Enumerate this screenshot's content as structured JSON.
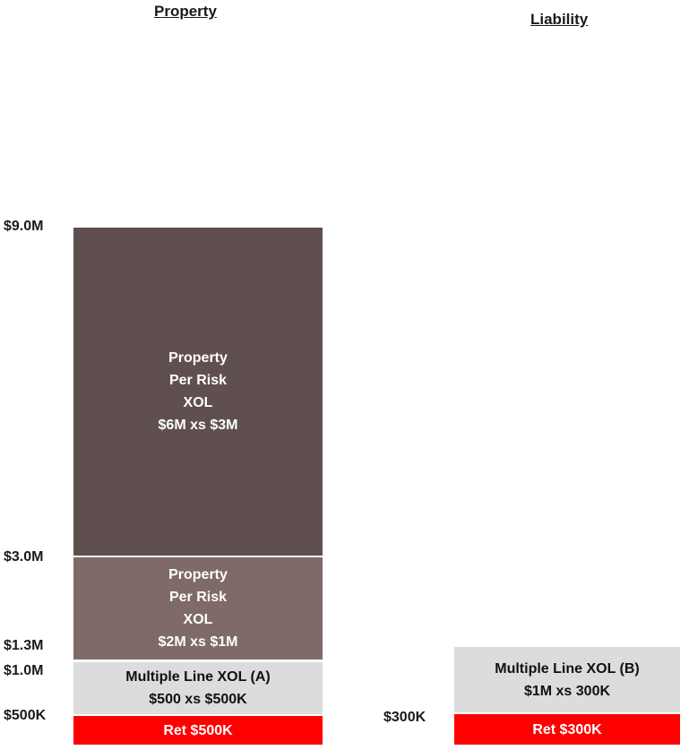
{
  "columns": {
    "property": {
      "heading": "Property",
      "y_labels": [
        "$9.0M",
        "$3.0M",
        "$1.3M",
        "$1.0M",
        "$500K"
      ],
      "layers": [
        {
          "label": "Property\nPer Risk\nXOL\n$6M xs $3M",
          "color": "#5f504f"
        },
        {
          "label": "Property\nPer Risk\nXOL\n$2M xs $1M",
          "color": "#7f6a68"
        },
        {
          "label": "Multiple Line XOL (A)\n$500 xs $500K",
          "color": "#dcdcdc"
        },
        {
          "label": "Ret $500K",
          "color": "#ff0000"
        }
      ]
    },
    "liability": {
      "heading": "Liability",
      "y_labels": [
        "$300K"
      ],
      "layers": [
        {
          "label": "Multiple Line XOL (B)\n$1M xs 300K",
          "color": "#dcdcdc"
        },
        {
          "label": "Ret $300K",
          "color": "#ff0000"
        }
      ]
    }
  }
}
